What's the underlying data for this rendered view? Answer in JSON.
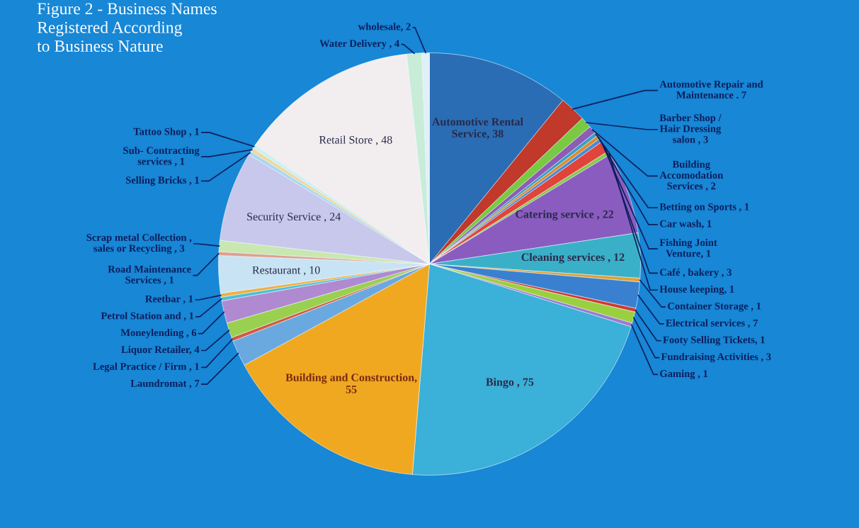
{
  "chart_data": {
    "type": "pie",
    "title": "Figure 2 - Business Names\nRegistered According\nto Business Nature",
    "categories": [
      "Automotive Rental\nService, 38",
      "Automotive Repair and\nMaintenance . 7",
      "Barber Shop /\nHair Dressing\nsalon , 3",
      "Building\nAccomodation\nServices , 2",
      "Betting on Sports , 1",
      "Car wash, 1",
      "Fishing Joint\nVenture, 1",
      "Café , bakery , 3",
      "House keeping, 1",
      "Catering service , 22",
      "Cleaning services , 12",
      "Container Storage , 1",
      "Electrical services , 7",
      "Footy Selling Tickets, 1",
      "Fundraising Activities , 3",
      "Gaming , 1",
      "Bingo , 75",
      "Building and Construction,\n55",
      "Laundromat , 7",
      "Legal Practice / Firm , 1",
      "Liquor Retailer, 4",
      "Moneylending , 6",
      "Petrol Station and , 1",
      "Reetbar , 1",
      "Restaurant , 10",
      "Road Maintenance\nServices , 1",
      "Scrap metal Collection ,\nsales or Recycling , 3",
      "Security Service , 24",
      "Selling Bricks , 1",
      "Sub- Contracting\nservices , 1",
      "Tattoo Shop , 1",
      "Retail Store , 48",
      "Water Delivery , 4",
      "wholesale, 2"
    ],
    "values": [
      38,
      7,
      3,
      2,
      1,
      1,
      1,
      3,
      1,
      22,
      12,
      1,
      7,
      1,
      3,
      1,
      75,
      55,
      7,
      1,
      4,
      6,
      1,
      1,
      10,
      1,
      3,
      24,
      1,
      1,
      1,
      48,
      4,
      2
    ],
    "colors": [
      "#2a6db5",
      "#c0392b",
      "#7ac943",
      "#8e5bb5",
      "#3aa0c8",
      "#e08a2a",
      "#4a8ad0",
      "#e0443a",
      "#8ac84a",
      "#8a5cc0",
      "#3ab0c8",
      "#e0a030",
      "#3a80d0",
      "#d03a30",
      "#9ad040",
      "#9a7ad0",
      "#3bb0d8",
      "#f0a820",
      "#6aa8e0",
      "#d05a40",
      "#9ad050",
      "#b08ad0",
      "#4ac0d8",
      "#f0b040",
      "#c8e4f4",
      "#e0a090",
      "#c8e8b0",
      "#c8c8ec",
      "#a8d8f0",
      "#f0d8a0",
      "#d0f0f0",
      "#f2eef0",
      "#c8ecd8",
      "#e0f0f8"
    ]
  }
}
